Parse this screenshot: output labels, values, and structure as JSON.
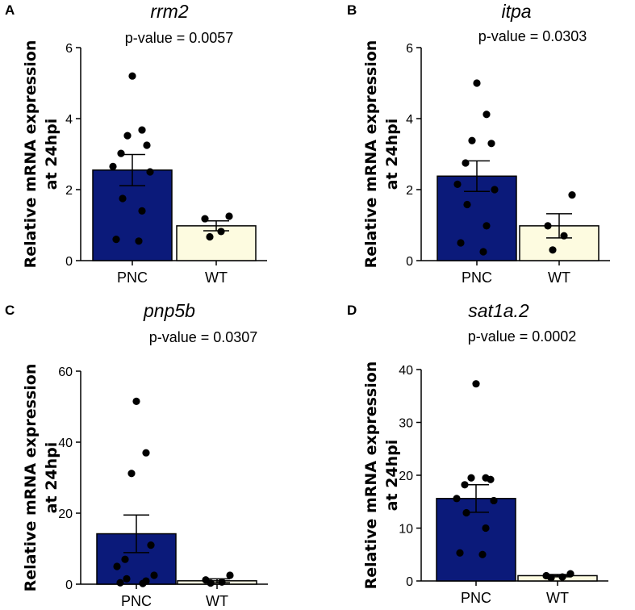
{
  "colors": {
    "PNC": "#0b1a7a",
    "WT": "#fdfbe0",
    "point": "#000000",
    "axis": "#000000"
  },
  "chart_data": [
    {
      "type": "bar",
      "panel": "A",
      "title": "rrm2",
      "annotation": "p-value = 0.0057",
      "ylabel_line1": "Relative mRNA expression",
      "ylabel_line2": "at 24hpi",
      "categories": [
        "PNC",
        "WT"
      ],
      "ylim": [
        0,
        6
      ],
      "yticks": [
        0,
        2,
        4,
        6
      ],
      "means": [
        2.55,
        0.98
      ],
      "sem": [
        0.44,
        0.14
      ],
      "points": [
        [
          5.2,
          3.68,
          3.52,
          3.25,
          3.02,
          2.65,
          2.5,
          1.75,
          1.4,
          0.6,
          0.55
        ],
        [
          1.25,
          1.18,
          0.82,
          0.67
        ]
      ]
    },
    {
      "type": "bar",
      "panel": "B",
      "title": "itpa",
      "annotation": "p-value = 0.0303",
      "ylabel_line1": "Relative mRNA expression",
      "ylabel_line2": "at 24hpi",
      "categories": [
        "PNC",
        "WT"
      ],
      "ylim": [
        0,
        6
      ],
      "yticks": [
        0,
        2,
        4,
        6
      ],
      "means": [
        2.38,
        0.98
      ],
      "sem": [
        0.43,
        0.34
      ],
      "points": [
        [
          5.0,
          4.12,
          3.38,
          3.3,
          2.75,
          2.15,
          2.0,
          1.58,
          0.98,
          0.5,
          0.25
        ],
        [
          1.85,
          0.98,
          0.7,
          0.3
        ]
      ]
    },
    {
      "type": "bar",
      "panel": "C",
      "title": "pnp5b",
      "annotation": "p-value = 0.0307",
      "ylabel_line1": "Relative mRNA expression",
      "ylabel_line2": "at 24hpi",
      "categories": [
        "PNC",
        "WT"
      ],
      "ylim": [
        0,
        60
      ],
      "yticks": [
        0,
        20,
        40,
        60
      ],
      "means": [
        14.2,
        0.95
      ],
      "sem": [
        5.3,
        0.55
      ],
      "points": [
        [
          51.5,
          37.0,
          31.2,
          11.0,
          7.0,
          5.0,
          2.5,
          1.5,
          0.9,
          0.4,
          0.2
        ],
        [
          2.5,
          1.2,
          0.6,
          0.3
        ]
      ]
    },
    {
      "type": "bar",
      "panel": "D",
      "title": "sat1a.2",
      "annotation": "p-value = 0.0002",
      "ylabel_line1": "Relative mRNA expression",
      "ylabel_line2": "at 24hpi",
      "categories": [
        "PNC",
        "WT"
      ],
      "ylim": [
        0,
        40
      ],
      "yticks": [
        0,
        10,
        20,
        30,
        40
      ],
      "means": [
        15.6,
        1.0
      ],
      "sem": [
        2.6,
        0.22
      ],
      "points": [
        [
          37.3,
          19.5,
          19.5,
          19.2,
          18.2,
          15.6,
          15.2,
          12.9,
          10.0,
          5.3,
          5.0
        ],
        [
          1.35,
          1.0,
          0.75,
          0.6
        ]
      ]
    }
  ]
}
